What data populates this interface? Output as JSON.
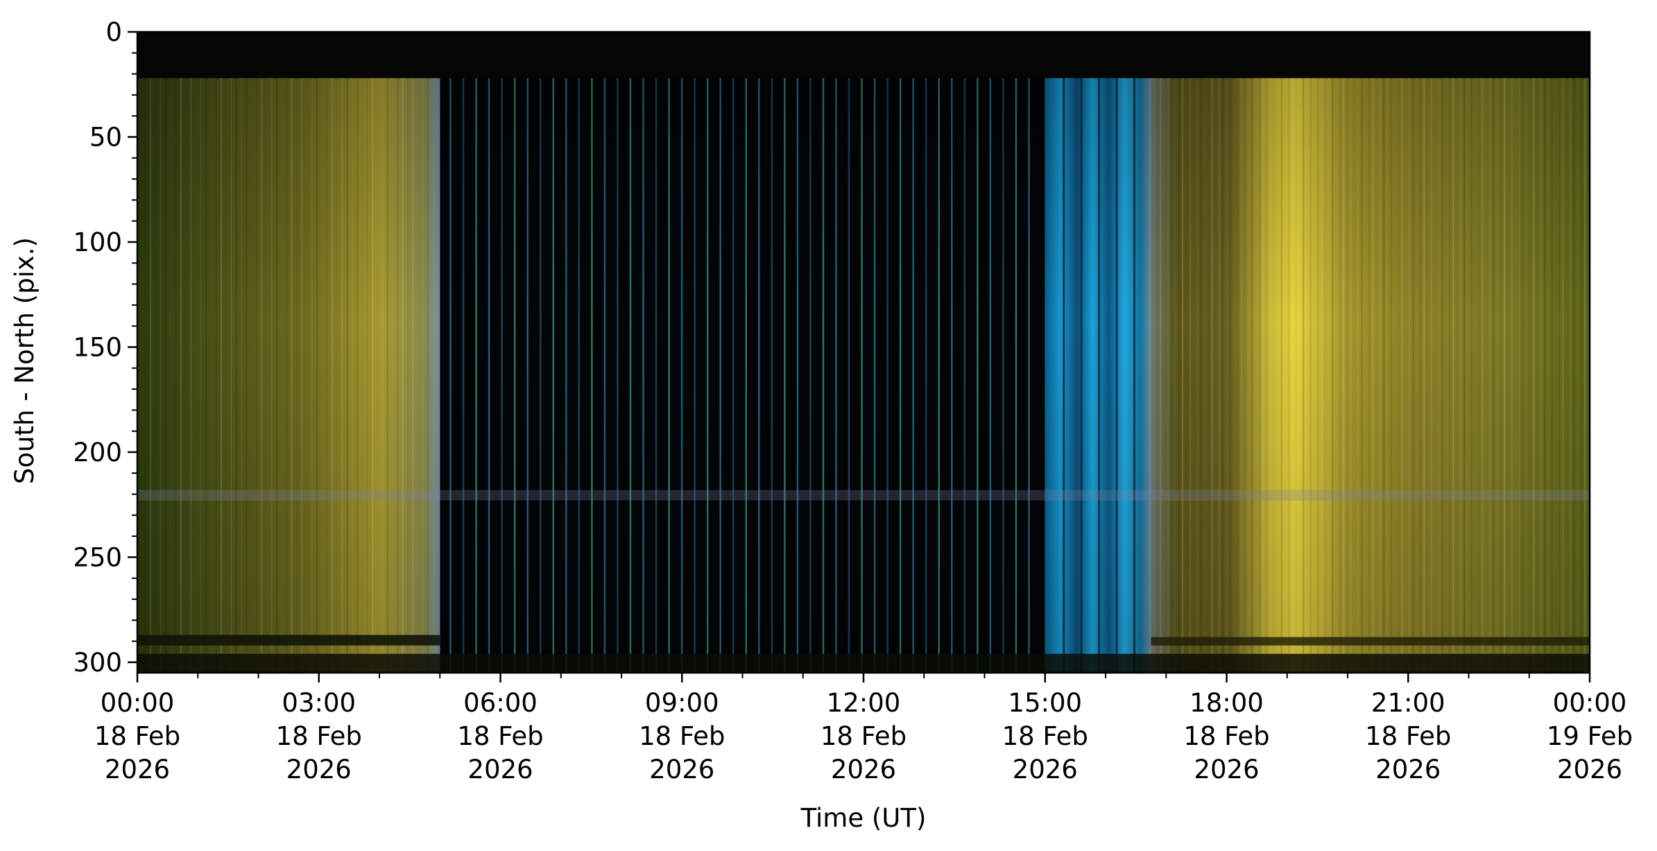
{
  "chart_data": {
    "type": "heatmap",
    "title": "",
    "xlabel": "Time (UT)",
    "ylabel": "South - North (pix.)",
    "xlim": [
      "2026-02-18T00:00",
      "2026-02-19T00:00"
    ],
    "ylim": [
      305,
      0
    ],
    "y_inverted": true,
    "grid": false,
    "x_ticks": [
      {
        "time": "2026-02-18T00:00",
        "lines": [
          "00:00",
          "18 Feb",
          "2026"
        ]
      },
      {
        "time": "2026-02-18T03:00",
        "lines": [
          "03:00",
          "18 Feb",
          "2026"
        ]
      },
      {
        "time": "2026-02-18T06:00",
        "lines": [
          "06:00",
          "18 Feb",
          "2026"
        ]
      },
      {
        "time": "2026-02-18T09:00",
        "lines": [
          "09:00",
          "18 Feb",
          "2026"
        ]
      },
      {
        "time": "2026-02-18T12:00",
        "lines": [
          "12:00",
          "18 Feb",
          "2026"
        ]
      },
      {
        "time": "2026-02-18T15:00",
        "lines": [
          "15:00",
          "18 Feb",
          "2026"
        ]
      },
      {
        "time": "2026-02-18T18:00",
        "lines": [
          "18:00",
          "18 Feb",
          "2026"
        ]
      },
      {
        "time": "2026-02-18T21:00",
        "lines": [
          "21:00",
          "18 Feb",
          "2026"
        ]
      },
      {
        "time": "2026-02-19T00:00",
        "lines": [
          "00:00",
          "19 Feb",
          "2026"
        ]
      }
    ],
    "y_ticks": [
      0,
      50,
      100,
      150,
      200,
      250,
      300
    ],
    "segments": [
      {
        "start": "2026-02-18T00:00",
        "end": "2026-02-18T05:00",
        "appearance": "olive-yellow keogram",
        "colors": [
          "#3a4410",
          "#6d6a1c",
          "#b8a93a"
        ]
      },
      {
        "start": "2026-02-18T05:00",
        "end": "2026-02-18T15:00",
        "appearance": "dark with thin vertical lines",
        "colors": [
          "#020406",
          "#3a6b8a"
        ]
      },
      {
        "start": "2026-02-18T15:00",
        "end": "2026-02-18T16:45",
        "appearance": "blue stripes",
        "colors": [
          "#0a6fa0",
          "#1ea6dc",
          "#0d3f66"
        ]
      },
      {
        "start": "2026-02-18T16:45",
        "end": "2026-02-19T00:00",
        "appearance": "yellow keogram",
        "colors": [
          "#5c5518",
          "#a8992e",
          "#e8d640"
        ]
      }
    ]
  }
}
